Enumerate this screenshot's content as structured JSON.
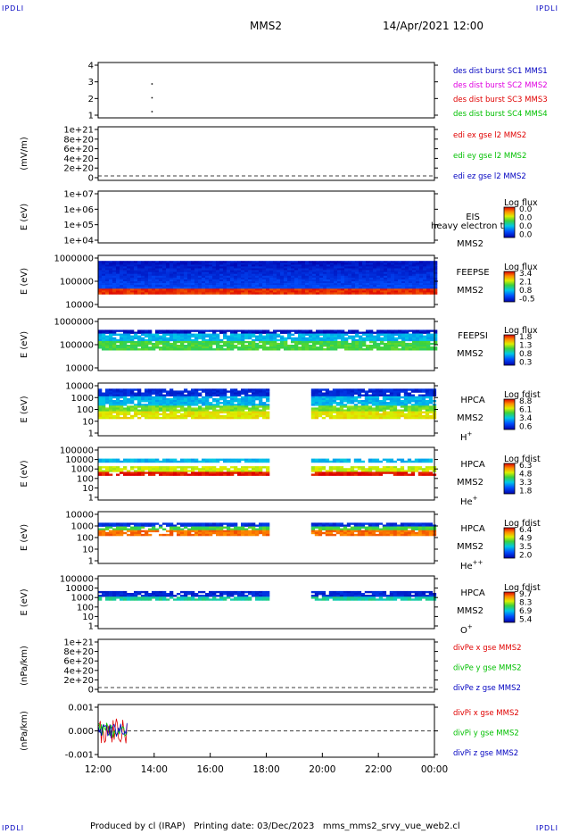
{
  "corners": {
    "tl": "IPDLI",
    "tr": "IPDLI",
    "bl": "IPDLI",
    "br": "IPDLI"
  },
  "header": {
    "spacecraft": "MMS2",
    "datetime": "14/Apr/2021 12:00"
  },
  "footer": {
    "credit": "Produced by cl (IRAP)   Printing date: 03/Dec/2023   mms_mms2_srvy_vue_web2.cl"
  },
  "time_axis": {
    "ticks": [
      "12:00",
      "14:00",
      "16:00",
      "18:00",
      "20:00",
      "22:00",
      "00:00"
    ],
    "range_hours": [
      12,
      24
    ]
  },
  "colors": {
    "mms1": "#0000c0",
    "mms2": "#e000e0",
    "mms3": "#e00000",
    "mms4": "#00c000",
    "x": "#e00000",
    "y": "#00c000",
    "z": "#0000c0"
  },
  "chart_data": [
    {
      "type": "scatter",
      "ylabel": "",
      "yticks": [
        "4",
        "3",
        "2",
        "1"
      ],
      "legend": [
        "des dist burst SC1 MMS1",
        "des dist burst SC2 MMS2",
        "des dist burst SC3 MMS3",
        "des dist burst SC4 MMS4"
      ],
      "legend_colors": [
        "#0000c0",
        "#e000e0",
        "#e00000",
        "#00c000"
      ],
      "points": [
        {
          "x": 13.9,
          "y": 3
        },
        {
          "x": 13.9,
          "y": 2
        },
        {
          "x": 13.9,
          "y": 1
        }
      ]
    },
    {
      "type": "line",
      "ylabel": "(mV/m)",
      "yticks": [
        "1e+21",
        "8e+20",
        "6e+20",
        "4e+20",
        "2e+20",
        "0"
      ],
      "legend": [
        "edi ex gse l2 MMS2",
        "edi ey gse l2 MMS2",
        "edi ez gse l2 MMS2"
      ],
      "legend_colors": [
        "#e00000",
        "#00c000",
        "#0000c0"
      ]
    },
    {
      "type": "heatmap",
      "ylabel": "E (eV)",
      "yticks": [
        "1e+07",
        "1e+06",
        "1e+05",
        "1e+04"
      ],
      "right_labels": [
        "EIS",
        "MMS2"
      ],
      "overlay_text": "heavy electron to",
      "colorbar": {
        "title": "Log flux",
        "ticks": [
          "0.0",
          "0.0",
          "0.0",
          "0.0"
        ]
      }
    },
    {
      "type": "heatmap",
      "ylabel": "E (eV)",
      "yticks": [
        "1000000",
        "100000",
        "10000"
      ],
      "right_labels": [
        "FEEPSE",
        "MMS2"
      ],
      "colorbar": {
        "title": "Log flux",
        "ticks": [
          "3.4",
          "2.1",
          "0.8",
          "-0.5"
        ]
      },
      "x_range": [
        12,
        24
      ]
    },
    {
      "type": "heatmap",
      "ylabel": "E (eV)",
      "yticks": [
        "1000000",
        "100000",
        "10000"
      ],
      "right_labels": [
        "FEEPSI",
        "MMS2"
      ],
      "colorbar": {
        "title": "Log flux",
        "ticks": [
          "1.8",
          "1.3",
          "0.8",
          "0.3"
        ]
      },
      "x_range": [
        12,
        24
      ]
    },
    {
      "type": "heatmap",
      "ylabel": "E (eV)",
      "yticks": [
        "10000",
        "1000",
        "100",
        "10",
        "1"
      ],
      "right_labels": [
        "HPCA",
        "MMS2"
      ],
      "species": "H",
      "species_sup": "+",
      "colorbar": {
        "title": "Log fdist",
        "ticks": [
          "8.8",
          "6.1",
          "3.4",
          "0.6"
        ]
      },
      "segments": [
        [
          12,
          18
        ],
        [
          19.6,
          24
        ]
      ]
    },
    {
      "type": "heatmap",
      "ylabel": "E (eV)",
      "yticks": [
        "100000",
        "10000",
        "1000",
        "100",
        "10",
        "1"
      ],
      "right_labels": [
        "HPCA",
        "MMS2"
      ],
      "species": "He",
      "species_sup": "+",
      "colorbar": {
        "title": "Log fdist",
        "ticks": [
          "6.3",
          "4.8",
          "3.3",
          "1.8"
        ]
      },
      "segments": [
        [
          12,
          18
        ],
        [
          19.6,
          24
        ]
      ]
    },
    {
      "type": "heatmap",
      "ylabel": "E (eV)",
      "yticks": [
        "10000",
        "1000",
        "100",
        "10",
        "1"
      ],
      "right_labels": [
        "HPCA",
        "MMS2"
      ],
      "species": "He",
      "species_sup": "++",
      "colorbar": {
        "title": "Log fdist",
        "ticks": [
          "6.4",
          "4.9",
          "3.5",
          "2.0"
        ]
      },
      "segments": [
        [
          12,
          18
        ],
        [
          19.6,
          24
        ]
      ]
    },
    {
      "type": "heatmap",
      "ylabel": "E (eV)",
      "yticks": [
        "100000",
        "10000",
        "1000",
        "100",
        "10",
        "1"
      ],
      "right_labels": [
        "HPCA",
        "MMS2"
      ],
      "species": "O",
      "species_sup": "+",
      "colorbar": {
        "title": "Log fdist",
        "ticks": [
          "9.7",
          "8.3",
          "6.9",
          "5.4"
        ]
      },
      "segments": [
        [
          12,
          18
        ],
        [
          19.6,
          24
        ]
      ]
    },
    {
      "type": "line",
      "ylabel": "(nPa/km)",
      "yticks": [
        "1e+21",
        "8e+20",
        "6e+20",
        "4e+20",
        "2e+20",
        "0"
      ],
      "legend": [
        "divPe x gse MMS2",
        "divPe y gse MMS2",
        "divPe z gse MMS2"
      ],
      "legend_colors": [
        "#e00000",
        "#00c000",
        "#0000c0"
      ]
    },
    {
      "type": "line",
      "ylabel": "(nPa/km)",
      "yticks": [
        "0.001",
        "0.000",
        "-0.001"
      ],
      "legend": [
        "divPi x gse MMS2",
        "divPi y gse MMS2",
        "divPi z gse MMS2"
      ],
      "legend_colors": [
        "#e00000",
        "#00c000",
        "#0000c0"
      ],
      "x_range": [
        12,
        13.05
      ]
    }
  ]
}
